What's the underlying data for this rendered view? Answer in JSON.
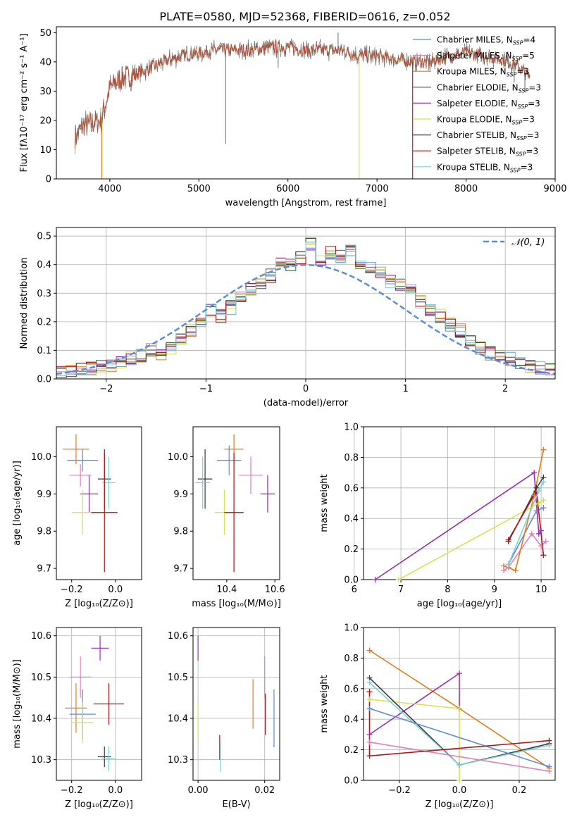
{
  "figure_title": "PLATE=0580, MJD=52368, FIBERID=0616, z=0.052",
  "colors": {
    "chabrier_miles": "#5b8dd6",
    "salpeter_miles": "#e07fb8",
    "kroupa_miles": "#e07b1c",
    "chabrier_elodie": "#2e6b2e",
    "salpeter_elodie": "#9a2fb5",
    "kroupa_elodie": "#d8e050",
    "chabrier_stelib": "#3a3a3a",
    "salpeter_stelib": "#b01414",
    "kroupa_stelib": "#7fd0d6",
    "normal": "#5b8dd6",
    "grid": "#b0b0b0",
    "data": "#777777"
  },
  "chart_data": [
    {
      "id": "spectrum",
      "type": "line",
      "title": "PLATE=0580, MJD=52368, FIBERID=0616, z=0.052",
      "xlabel": "wavelength [Angstrom, rest frame]",
      "ylabel": "Flux [fλ10⁻¹⁷ erg cm⁻² s⁻¹ A⁻¹]",
      "xlim": [
        3400,
        9000
      ],
      "ylim": [
        0,
        52
      ],
      "xticks": [
        4000,
        5000,
        6000,
        7000,
        8000,
        9000
      ],
      "yticks": [
        0,
        10,
        20,
        30,
        40,
        50
      ],
      "grid": false,
      "legend": "right",
      "legend_entries": [
        {
          "label": "Chabrier MILES, N",
          "sub": "SSP",
          "tail": "=4",
          "color_key": "chabrier_miles"
        },
        {
          "label": "Salpeter MILES, N",
          "sub": "SSP",
          "tail": "=5",
          "color_key": "salpeter_miles"
        },
        {
          "label": "Kroupa MILES, N",
          "sub": "SSP",
          "tail": "=3",
          "color_key": "kroupa_miles"
        },
        {
          "label": "Chabrier ELODIE, N",
          "sub": "SSP",
          "tail": "=3",
          "color_key": "chabrier_elodie"
        },
        {
          "label": "Salpeter ELODIE, N",
          "sub": "SSP",
          "tail": "=3",
          "color_key": "salpeter_elodie"
        },
        {
          "label": "Kroupa ELODIE, N",
          "sub": "SSP",
          "tail": "=3",
          "color_key": "kroupa_elodie"
        },
        {
          "label": "Chabrier STELIB, N",
          "sub": "SSP",
          "tail": "=3",
          "color_key": "chabrier_stelib"
        },
        {
          "label": "Salpeter STELIB, N",
          "sub": "SSP",
          "tail": "=3",
          "color_key": "salpeter_stelib"
        },
        {
          "label": "Kroupa STELIB, N",
          "sub": "SSP",
          "tail": "=3",
          "color_key": "kroupa_stelib"
        }
      ],
      "continuum": [
        [
          3600,
          14
        ],
        [
          3700,
          18
        ],
        [
          3800,
          19
        ],
        [
          3900,
          20
        ],
        [
          4000,
          31
        ],
        [
          4100,
          34
        ],
        [
          4200,
          35
        ],
        [
          4400,
          37
        ],
        [
          4600,
          40
        ],
        [
          4800,
          42
        ],
        [
          5000,
          43
        ],
        [
          5200,
          44
        ],
        [
          5400,
          44
        ],
        [
          5600,
          44
        ],
        [
          5800,
          45
        ],
        [
          6000,
          45
        ],
        [
          6200,
          44
        ],
        [
          6400,
          44
        ],
        [
          6600,
          44
        ],
        [
          6800,
          42
        ],
        [
          7000,
          42
        ],
        [
          7200,
          41
        ],
        [
          7400,
          40
        ],
        [
          7600,
          40
        ],
        [
          7800,
          42
        ],
        [
          8000,
          43
        ],
        [
          8200,
          42
        ],
        [
          8400,
          41
        ],
        [
          8600,
          38
        ],
        [
          8700,
          35
        ]
      ],
      "spikes": [
        [
          3910,
          0
        ],
        [
          5300,
          12
        ],
        [
          5890,
          38
        ],
        [
          6563,
          50
        ],
        [
          6800,
          0
        ],
        [
          7400,
          0
        ],
        [
          8540,
          33
        ],
        [
          8660,
          30
        ]
      ]
    },
    {
      "id": "residuals",
      "type": "bar",
      "subtype": "step-histogram",
      "xlabel": "(data-model)/error",
      "ylabel": "Normed distribution",
      "xlim": [
        -2.5,
        2.5
      ],
      "ylim": [
        0,
        0.53
      ],
      "xticks": [
        -2,
        -1,
        0,
        1,
        2
      ],
      "yticks": [
        0.0,
        0.1,
        0.2,
        0.3,
        0.4,
        0.5
      ],
      "grid": true,
      "legend": "top-right",
      "legend_label": "𝒩(0, 1)",
      "bin_width": 0.1,
      "bin_start": -2.5,
      "base_values": [
        0.02,
        0.025,
        0.03,
        0.035,
        0.04,
        0.05,
        0.06,
        0.07,
        0.08,
        0.1,
        0.09,
        0.11,
        0.14,
        0.17,
        0.2,
        0.24,
        0.22,
        0.25,
        0.29,
        0.31,
        0.33,
        0.36,
        0.4,
        0.4,
        0.42,
        0.47,
        0.42,
        0.44,
        0.43,
        0.45,
        0.4,
        0.39,
        0.37,
        0.34,
        0.33,
        0.31,
        0.27,
        0.24,
        0.22,
        0.19,
        0.17,
        0.13,
        0.11,
        0.09,
        0.08,
        0.07,
        0.05,
        0.045,
        0.04,
        0.03
      ]
    },
    {
      "id": "age_vs_Z",
      "type": "scatter",
      "subtype": "error-bars",
      "xlabel": "Z [log₁₀(Z/Z⊙)]",
      "ylabel": "age  [log₁₀(age/yr)]",
      "xlim": [
        -0.27,
        0.12
      ],
      "ylim": [
        9.67,
        10.08
      ],
      "xticks": [
        -0.2,
        0.0
      ],
      "yticks": [
        9.7,
        9.8,
        9.9,
        10.0
      ],
      "grid": false,
      "points": [
        {
          "x": -0.18,
          "y": 10.02,
          "xerr": 0.06,
          "yerr": 0.04,
          "color_key": "kroupa_miles"
        },
        {
          "x": -0.15,
          "y": 9.99,
          "xerr": 0.07,
          "yerr": 0.03,
          "color_key": "chabrier_miles"
        },
        {
          "x": -0.16,
          "y": 9.95,
          "xerr": 0.05,
          "yerr": 0.03,
          "color_key": "salpeter_miles"
        },
        {
          "x": -0.05,
          "y": 9.94,
          "xerr": 0.03,
          "yerr": 0.08,
          "color_key": "chabrier_stelib"
        },
        {
          "x": -0.03,
          "y": 9.93,
          "xerr": 0.03,
          "yerr": 0.07,
          "color_key": "kroupa_stelib"
        },
        {
          "x": -0.12,
          "y": 9.9,
          "xerr": 0.04,
          "yerr": 0.05,
          "color_key": "salpeter_elodie"
        },
        {
          "x": -0.15,
          "y": 9.85,
          "xerr": 0.05,
          "yerr": 0.06,
          "color_key": "kroupa_elodie"
        },
        {
          "x": -0.05,
          "y": 9.85,
          "xerr": 0.06,
          "yerr": 0.16,
          "color_key": "salpeter_stelib"
        }
      ]
    },
    {
      "id": "age_vs_mass",
      "type": "scatter",
      "subtype": "error-bars",
      "xlabel": "mass [log₁₀(M/M⊙)]",
      "ylabel": "",
      "xlim": [
        10.26,
        10.62
      ],
      "ylim": [
        9.67,
        10.08
      ],
      "xticks": [
        10.4,
        10.6
      ],
      "yticks": [
        9.7,
        9.8,
        9.9,
        10.0
      ],
      "grid": false,
      "points": [
        {
          "x": 10.43,
          "y": 10.02,
          "xerr": 0.04,
          "yerr": 0.04,
          "color_key": "kroupa_miles"
        },
        {
          "x": 10.41,
          "y": 9.99,
          "xerr": 0.05,
          "yerr": 0.04,
          "color_key": "chabrier_miles"
        },
        {
          "x": 10.5,
          "y": 9.95,
          "xerr": 0.05,
          "yerr": 0.05,
          "color_key": "salpeter_miles"
        },
        {
          "x": 10.31,
          "y": 9.94,
          "xerr": 0.03,
          "yerr": 0.08,
          "color_key": "chabrier_stelib"
        },
        {
          "x": 10.3,
          "y": 9.93,
          "xerr": 0.03,
          "yerr": 0.07,
          "color_key": "kroupa_stelib"
        },
        {
          "x": 10.57,
          "y": 9.9,
          "xerr": 0.03,
          "yerr": 0.05,
          "color_key": "salpeter_elodie"
        },
        {
          "x": 10.39,
          "y": 9.85,
          "xerr": 0.04,
          "yerr": 0.06,
          "color_key": "kroupa_elodie"
        },
        {
          "x": 10.43,
          "y": 9.85,
          "xerr": 0.04,
          "yerr": 0.16,
          "color_key": "salpeter_stelib"
        }
      ]
    },
    {
      "id": "weight_vs_age",
      "type": "line",
      "xlabel": "age  [log₁₀(age/yr)]",
      "ylabel": "mass weight",
      "xlim": [
        6.2,
        10.3
      ],
      "ylim": [
        0.0,
        1.0
      ],
      "xticks": [
        6,
        7,
        8,
        9,
        10
      ],
      "yticks": [
        0.0,
        0.2,
        0.4,
        0.6,
        0.8,
        1.0
      ],
      "grid": true,
      "series": [
        {
          "color_key": "chabrier_miles",
          "x": [
            9.3,
            9.9,
            10.05
          ],
          "y": [
            0.1,
            0.45,
            0.47
          ]
        },
        {
          "color_key": "salpeter_miles",
          "x": [
            9.2,
            9.3,
            9.8,
            10.0,
            10.1
          ],
          "y": [
            0.06,
            0.08,
            0.3,
            0.22,
            0.25
          ]
        },
        {
          "color_key": "kroupa_miles",
          "x": [
            9.2,
            9.45,
            9.85,
            10.05
          ],
          "y": [
            0.09,
            0.06,
            0.55,
            0.85
          ]
        },
        {
          "color_key": "salpeter_elodie",
          "x": [
            6.45,
            9.85,
            9.95,
            10.0
          ],
          "y": [
            0.0,
            0.7,
            0.3,
            0.32
          ]
        },
        {
          "color_key": "kroupa_elodie",
          "x": [
            6.95,
            9.95,
            10.05
          ],
          "y": [
            0.0,
            0.5,
            0.52
          ]
        },
        {
          "color_key": "chabrier_stelib",
          "x": [
            9.3,
            9.9,
            10.05
          ],
          "y": [
            0.25,
            0.6,
            0.67
          ]
        },
        {
          "color_key": "salpeter_stelib",
          "x": [
            9.3,
            9.9,
            10.05
          ],
          "y": [
            0.26,
            0.58,
            0.16
          ]
        },
        {
          "color_key": "kroupa_stelib",
          "x": [
            9.3,
            9.95,
            10.05
          ],
          "y": [
            0.1,
            0.58,
            0.64
          ]
        }
      ]
    },
    {
      "id": "mass_vs_Z",
      "type": "scatter",
      "subtype": "error-bars",
      "xlabel": "Z [log₁₀(Z/Z⊙)]",
      "ylabel": "mass [log₁₀(M/M⊙)]",
      "xlim": [
        -0.27,
        0.12
      ],
      "ylim": [
        10.25,
        10.62
      ],
      "xticks": [
        -0.2,
        0.0
      ],
      "yticks": [
        10.3,
        10.4,
        10.5,
        10.6
      ],
      "grid": true,
      "points": [
        {
          "x": -0.07,
          "y": 10.57,
          "xerr": 0.04,
          "yerr": 0.03,
          "color_key": "salpeter_elodie"
        },
        {
          "x": -0.16,
          "y": 10.5,
          "xerr": 0.05,
          "yerr": 0.05,
          "color_key": "salpeter_miles"
        },
        {
          "x": -0.03,
          "y": 10.435,
          "xerr": 0.07,
          "yerr": 0.05,
          "color_key": "salpeter_stelib"
        },
        {
          "x": -0.18,
          "y": 10.425,
          "xerr": 0.05,
          "yerr": 0.06,
          "color_key": "kroupa_miles"
        },
        {
          "x": -0.15,
          "y": 10.41,
          "xerr": 0.06,
          "yerr": 0.06,
          "color_key": "chabrier_miles"
        },
        {
          "x": -0.15,
          "y": 10.39,
          "xerr": 0.05,
          "yerr": 0.05,
          "color_key": "kroupa_elodie"
        },
        {
          "x": -0.05,
          "y": 10.307,
          "xerr": 0.03,
          "yerr": 0.025,
          "color_key": "chabrier_stelib"
        },
        {
          "x": -0.03,
          "y": 10.303,
          "xerr": 0.03,
          "yerr": 0.03,
          "color_key": "kroupa_stelib"
        }
      ]
    },
    {
      "id": "mass_vs_EBV",
      "type": "scatter",
      "subtype": "error-bars",
      "xlabel": "E(B-V)",
      "ylabel": "",
      "xlim": [
        -0.0015,
        0.0245
      ],
      "ylim": [
        10.25,
        10.62
      ],
      "xticks": [
        0.0,
        0.02
      ],
      "yticks": [
        10.3,
        10.4,
        10.5,
        10.6
      ],
      "grid": true,
      "points": [
        {
          "x": 0.0,
          "y": 10.57,
          "xerr": 0,
          "yerr": 0.03,
          "color_key": "salpeter_elodie"
        },
        {
          "x": 0.0,
          "y": 10.39,
          "xerr": 0,
          "yerr": 0.05,
          "color_key": "kroupa_elodie"
        },
        {
          "x": 0.0065,
          "y": 10.33,
          "xerr": 0,
          "yerr": 0.03,
          "color_key": "salpeter_stelib"
        },
        {
          "x": 0.0067,
          "y": 10.305,
          "xerr": 0,
          "yerr": 0.035,
          "color_key": "kroupa_stelib"
        },
        {
          "x": 0.0165,
          "y": 10.435,
          "xerr": 0,
          "yerr": 0.06,
          "color_key": "kroupa_miles"
        },
        {
          "x": 0.02,
          "y": 10.5,
          "xerr": 0,
          "yerr": 0.05,
          "color_key": "salpeter_miles"
        },
        {
          "x": 0.0202,
          "y": 10.41,
          "xerr": 0,
          "yerr": 0.05,
          "color_key": "salpeter_stelib"
        },
        {
          "x": 0.0228,
          "y": 10.4,
          "xerr": 0,
          "yerr": 0.07,
          "color_key": "chabrier_miles"
        }
      ]
    },
    {
      "id": "weight_vs_Z",
      "type": "line",
      "xlabel": "Z [log₁₀(Z/Z⊙)]",
      "ylabel": "mass weight",
      "xlim": [
        -0.32,
        0.32
      ],
      "ylim": [
        0.0,
        1.0
      ],
      "xticks": [
        -0.2,
        0.0,
        0.2
      ],
      "yticks": [
        0.0,
        0.2,
        0.4,
        0.6,
        0.8,
        1.0
      ],
      "grid": true,
      "series": [
        {
          "color_key": "kroupa_miles",
          "x": [
            -0.3,
            0.0,
            0.3
          ],
          "y": [
            0.85,
            0.47,
            0.08
          ]
        },
        {
          "color_key": "salpeter_elodie",
          "x": [
            -0.3,
            0.0,
            0.0
          ],
          "y": [
            0.3,
            0.7,
            0.47
          ]
        },
        {
          "color_key": "kroupa_elodie",
          "x": [
            -0.3,
            0.0,
            0.0
          ],
          "y": [
            0.53,
            0.47,
            0.0
          ]
        },
        {
          "color_key": "chabrier_stelib",
          "x": [
            -0.3,
            0.0,
            0.3
          ],
          "y": [
            0.67,
            0.1,
            0.24
          ]
        },
        {
          "color_key": "kroupa_stelib",
          "x": [
            -0.3,
            0.0,
            0.3
          ],
          "y": [
            0.64,
            0.1,
            0.23
          ]
        },
        {
          "color_key": "chabrier_miles",
          "x": [
            -0.3,
            0.3
          ],
          "y": [
            0.47,
            0.09
          ]
        },
        {
          "color_key": "salpeter_miles",
          "x": [
            -0.3,
            0.3
          ],
          "y": [
            0.25,
            0.06
          ]
        },
        {
          "color_key": "salpeter_stelib",
          "x": [
            -0.3,
            -0.3,
            0.3
          ],
          "y": [
            0.58,
            0.16,
            0.26
          ]
        }
      ]
    }
  ]
}
